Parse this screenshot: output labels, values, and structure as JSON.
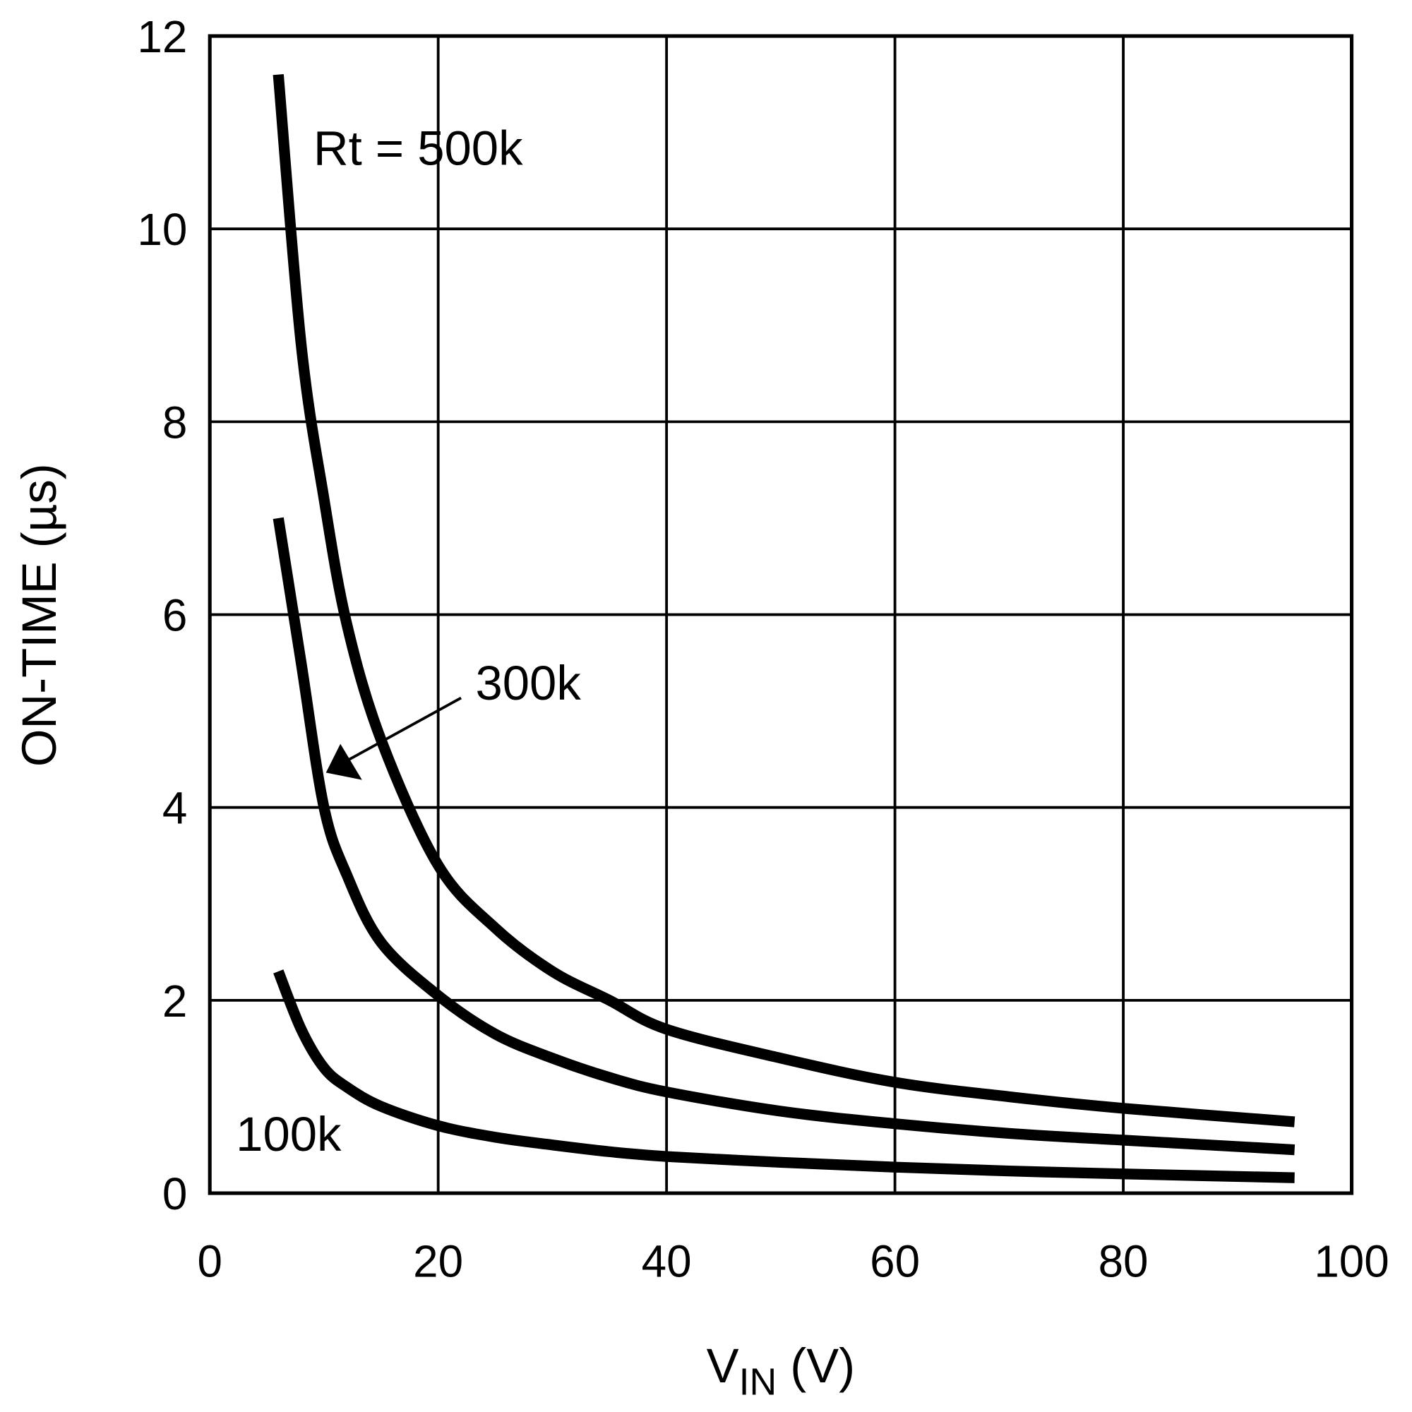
{
  "chart_data": {
    "type": "line",
    "title": "",
    "xlabel": "V",
    "xlabel_sub": "IN",
    "xlabel_unit": " (V)",
    "ylabel": "ON-TIME (µs)",
    "xlim": [
      0,
      100
    ],
    "ylim": [
      0,
      12
    ],
    "xticks": [
      "0",
      "20",
      "40",
      "60",
      "80",
      "100"
    ],
    "yticks": [
      "0",
      "2",
      "4",
      "6",
      "8",
      "10",
      "12"
    ],
    "grid": true,
    "line_color": "#000000",
    "x": [
      6,
      8,
      10,
      12,
      15,
      20,
      25,
      30,
      35,
      40,
      50,
      60,
      70,
      80,
      95
    ],
    "series": [
      {
        "name": "Rt = 500k",
        "values": [
          11.6,
          8.8,
          7.2,
          5.9,
          4.7,
          3.4,
          2.75,
          2.3,
          2.0,
          1.7,
          1.4,
          1.15,
          1.0,
          0.88,
          0.74
        ]
      },
      {
        "name": "300k",
        "values": [
          7.0,
          5.5,
          4.0,
          3.3,
          2.6,
          2.05,
          1.65,
          1.4,
          1.2,
          1.05,
          0.85,
          0.72,
          0.62,
          0.55,
          0.45
        ]
      },
      {
        "name": "100k",
        "values": [
          2.3,
          1.7,
          1.3,
          1.1,
          0.9,
          0.7,
          0.58,
          0.5,
          0.43,
          0.38,
          0.32,
          0.27,
          0.23,
          0.2,
          0.16
        ]
      }
    ],
    "annotations": [
      "Rt = 500k",
      "300k",
      "100k"
    ]
  }
}
